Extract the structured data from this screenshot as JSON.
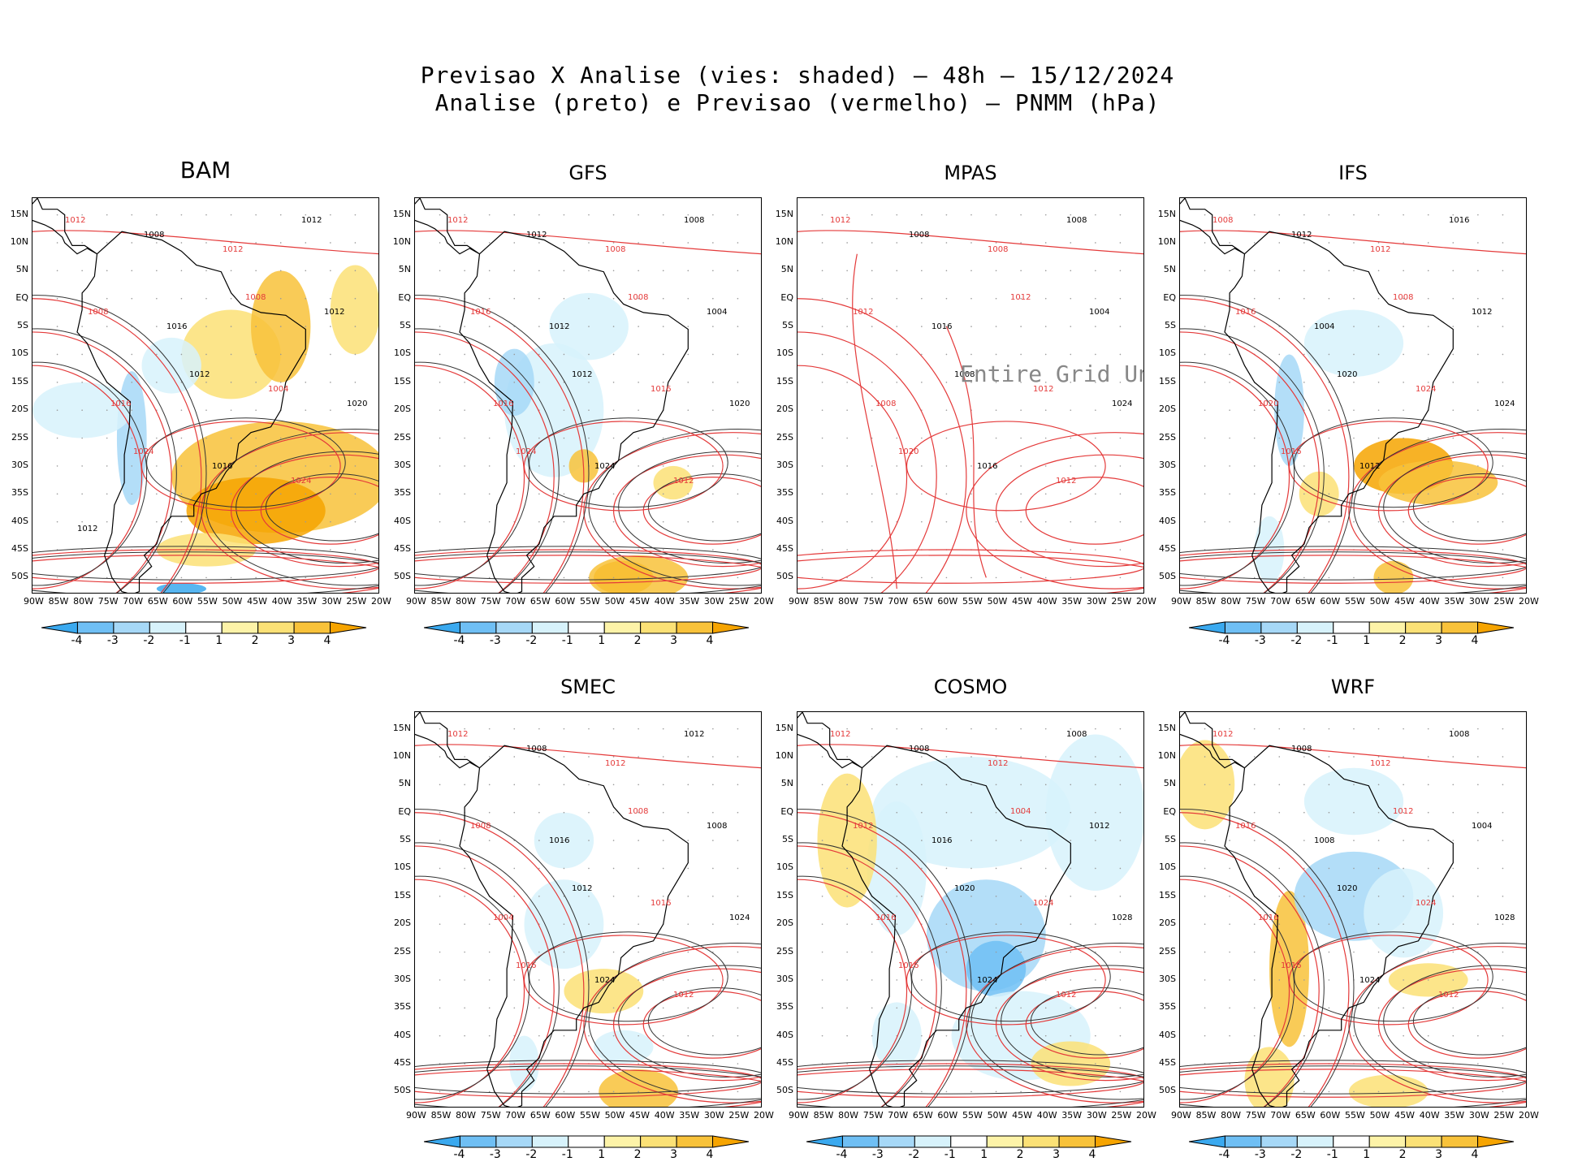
{
  "header": {
    "line1": "Previsao X Analise (vies: shaded) – 48h – 15/12/2024",
    "line2": "Analise (preto) e Previsao (vermelho) – PNMM (hPa)"
  },
  "axes": {
    "lat_labels": [
      "15N",
      "10N",
      "5N",
      "EQ",
      "5S",
      "10S",
      "15S",
      "20S",
      "25S",
      "30S",
      "35S",
      "40S",
      "45S",
      "50S"
    ],
    "lon_labels": [
      "90W",
      "85W",
      "80W",
      "75W",
      "70W",
      "65W",
      "60W",
      "55W",
      "50W",
      "45W",
      "40W",
      "35W",
      "30W",
      "25W",
      "20W"
    ]
  },
  "colorbar": {
    "labels": [
      "-4",
      "-3",
      "-2",
      "-1",
      "1",
      "2",
      "3",
      "4"
    ],
    "colors": [
      "#3aa9ef",
      "#6fbff4",
      "#a6d8f7",
      "#d7f2fb",
      "#ffffff",
      "#fdf3a8",
      "#fbe176",
      "#f8c23a",
      "#f6a400"
    ]
  },
  "models": [
    {
      "name": "BAM",
      "undef_text": ""
    },
    {
      "name": "GFS",
      "undef_text": ""
    },
    {
      "name": "MPAS",
      "undef_text": "Entire Grid Undef"
    },
    {
      "name": "IFS",
      "undef_text": ""
    },
    {
      "name": "SMEC",
      "undef_text": ""
    },
    {
      "name": "COSMO",
      "undef_text": ""
    },
    {
      "name": "WRF",
      "undef_text": ""
    }
  ],
  "isobar_labels": {
    "BAM": [
      "1012",
      "1008",
      "1012",
      "1012",
      "1008",
      "1016",
      "1008",
      "1012",
      "1016",
      "1012",
      "1004",
      "1020",
      "1024",
      "1016",
      "1024",
      "1012"
    ],
    "GFS": [
      "1012",
      "1012",
      "1008",
      "1008",
      "1016",
      "1012",
      "1008",
      "1004",
      "1016",
      "1012",
      "1016",
      "1020",
      "1024",
      "1024",
      "1012"
    ],
    "MPAS": [
      "1012",
      "1008",
      "1008",
      "1008",
      "1012",
      "1016",
      "1012",
      "1004",
      "1008",
      "1008",
      "1012",
      "1024",
      "1020",
      "1016",
      "1012"
    ],
    "IFS": [
      "1008",
      "1012",
      "1012",
      "1016",
      "1016",
      "1004",
      "1008",
      "1012",
      "1020",
      "1020",
      "1024",
      "1024",
      "1016",
      "1012"
    ],
    "SMEC": [
      "1012",
      "1008",
      "1012",
      "1012",
      "1008",
      "1016",
      "1008",
      "1008",
      "1004",
      "1012",
      "1016",
      "1024",
      "1016",
      "1024",
      "1012"
    ],
    "COSMO": [
      "1012",
      "1008",
      "1012",
      "1008",
      "1012",
      "1016",
      "1004",
      "1012",
      "1016",
      "1020",
      "1024",
      "1028",
      "1016",
      "1024",
      "1012"
    ],
    "WRF": [
      "1012",
      "1008",
      "1012",
      "1008",
      "1016",
      "1008",
      "1012",
      "1004",
      "1016",
      "1020",
      "1024",
      "1028",
      "1016",
      "1024",
      "1012"
    ]
  }
}
